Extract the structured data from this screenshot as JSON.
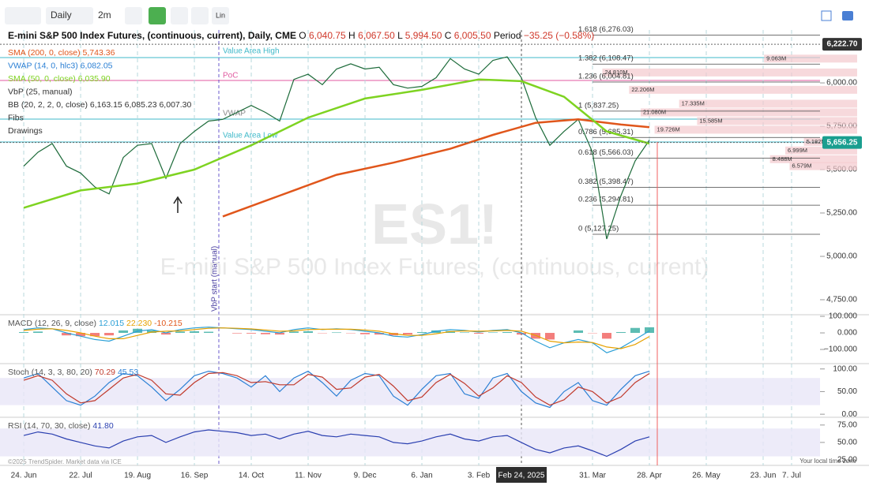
{
  "toolbar": {
    "interval": "Daily",
    "range": "2m",
    "scale": "Lin"
  },
  "header": {
    "title": "E-mini S&P 500 Index Futures, (continuous, current), Daily, CME",
    "ohlc": [
      {
        "key": "O",
        "value": "6,040.75"
      },
      {
        "key": "H",
        "value": "6,067.50"
      },
      {
        "key": "L",
        "value": "5,994.50"
      },
      {
        "key": "C",
        "value": "6,005.50"
      },
      {
        "key": "Period",
        "value": "−35.25 (−0.58%)"
      }
    ],
    "legend": [
      {
        "text": "SMA (200, 0, close)",
        "value": "5,743.36",
        "color": "#e0561b"
      },
      {
        "text": "VWAP (14, 0, hlc3)",
        "value": "6,082.05",
        "color": "#2a7fd4"
      },
      {
        "text": "SMA (50, 0, close)",
        "value": "6,035.90",
        "color": "#7ed321"
      },
      {
        "text": "VbP (25, manual)",
        "value": "",
        "color": "#333"
      },
      {
        "text": "BB (20, 2, 2, 0, close)",
        "value": "6,163.15 6,085.23 6,007.30",
        "color": "#333"
      },
      {
        "text": "Fibs",
        "value": "",
        "color": "#333"
      },
      {
        "text": "Drawings",
        "value": "",
        "color": "#333"
      }
    ]
  },
  "annotations": {
    "vah": "Value Area High",
    "poc": "PoC",
    "vwap": "VWAP",
    "val": "Value Area Low",
    "vbp": "VbP start (manual)",
    "watermark": "ES1!",
    "watermark_sub": "E-mini S&P 500 Index Futures, (continuous, current)",
    "crosshair": "Feb 24, 2025",
    "copyright": "©2025 TrendSpider. Market data via ICE",
    "timezone": "Your local time zone"
  },
  "chart_data": [
    {
      "type": "line",
      "xlim": [
        -1.67,
        56
      ],
      "ylim": [
        4668,
        6305
      ],
      "xticks": [
        {
          "value": 0,
          "label": "24. Jun"
        },
        {
          "value": 4,
          "label": "22. Jul"
        },
        {
          "value": 8,
          "label": "19. Aug"
        },
        {
          "value": 12,
          "label": "16. Sep"
        },
        {
          "value": 16,
          "label": "14. Oct"
        },
        {
          "value": 20,
          "label": "11. Nov"
        },
        {
          "value": 24,
          "label": "9. Dec"
        },
        {
          "value": 28,
          "label": "6. Jan"
        },
        {
          "value": 32,
          "label": "3. Feb"
        },
        {
          "value": 40,
          "label": "31. Mar"
        },
        {
          "value": 44,
          "label": "28. Apr"
        },
        {
          "value": 48,
          "label": "26. May"
        },
        {
          "value": 52,
          "label": "23. Jun"
        },
        {
          "value": 54,
          "label": "7. Jul"
        }
      ],
      "crosshair_x": 35,
      "yticks": [
        {
          "value": 6000,
          "label": "6,000.00"
        },
        {
          "value": 5750,
          "label": "5,750.00"
        },
        {
          "value": 5500,
          "label": "5,500.00"
        },
        {
          "value": 5250,
          "label": "5,250.00"
        },
        {
          "value": 5000,
          "label": "5,000.00"
        },
        {
          "value": 4750,
          "label": "4,750.00"
        }
      ],
      "price_tags": [
        {
          "value": 6222.7,
          "label": "6,222.70",
          "color": "#333"
        },
        {
          "value": 5656.25,
          "label": "5,656.25",
          "color": "#1a9e8f"
        }
      ],
      "series": [
        {
          "name": "Close",
          "color": "#1d6b3a",
          "x": [
            0,
            1,
            2,
            3,
            4,
            5,
            6,
            7,
            8,
            9,
            10,
            11,
            12,
            13,
            14,
            15,
            16,
            17,
            18,
            19,
            20,
            21,
            22,
            23,
            24,
            25,
            26,
            27,
            28,
            29,
            30,
            31,
            32,
            33,
            34,
            35,
            36,
            37,
            38,
            39,
            40,
            41,
            42,
            43,
            44
          ],
          "values": [
            5520,
            5600,
            5650,
            5520,
            5480,
            5400,
            5360,
            5570,
            5640,
            5650,
            5450,
            5650,
            5720,
            5780,
            5790,
            5830,
            5870,
            5830,
            5780,
            6020,
            6050,
            5990,
            6080,
            6110,
            6080,
            6090,
            5990,
            5970,
            5980,
            6030,
            6140,
            6080,
            6050,
            6130,
            6150,
            6030,
            5800,
            5640,
            5720,
            5790,
            5600,
            5100,
            5350,
            5550,
            5670
          ]
        },
        {
          "name": "SMA 200",
          "color": "#e0561b",
          "x": [
            14,
            18,
            22,
            26,
            30,
            33,
            36,
            39,
            42,
            44
          ],
          "values": [
            5230,
            5350,
            5470,
            5540,
            5620,
            5700,
            5770,
            5790,
            5760,
            5745
          ]
        },
        {
          "name": "SMA 50",
          "color": "#7ed321",
          "x": [
            0,
            4,
            8,
            12,
            16,
            20,
            24,
            28,
            32,
            35,
            38,
            41,
            44
          ],
          "values": [
            5280,
            5380,
            5420,
            5500,
            5640,
            5800,
            5910,
            5960,
            6020,
            6010,
            5920,
            5720,
            5650
          ]
        }
      ],
      "fibs": [
        {
          "value": 6276.03,
          "label": "1.618 (6,276.03)"
        },
        {
          "value": 6108.47,
          "label": "1.382 (6,108.47)"
        },
        {
          "value": 6004.81,
          "label": "1.236 (6,004.81)"
        },
        {
          "value": 5837.25,
          "label": "1 (5,837.25)"
        },
        {
          "value": 5685.31,
          "label": "0.786 (5,685.31)"
        },
        {
          "value": 5566.03,
          "label": "0.618 (5,566.03)"
        },
        {
          "value": 5398.47,
          "label": "0.382 (5,398.47)"
        },
        {
          "value": 5294.81,
          "label": "0.236 (5,294.81)"
        },
        {
          "value": 5127.25,
          "label": "0 (5,127.25)"
        }
      ],
      "volume_profile": {
        "prices": [
          6140,
          6060,
          5960,
          5880,
          5830,
          5780,
          5730,
          5660,
          5610,
          5560,
          5520
        ],
        "values": [
          9.063,
          24.81,
          22.206,
          17.335,
          21.08,
          15.585,
          19.726,
          5.182,
          6.999,
          8.488,
          6.579
        ],
        "value_labels": [
          "9.063M",
          "24.810M",
          "22.206M",
          "17.335M",
          "21.080M",
          "15.585M",
          "19.726M",
          "5.182M",
          "6.999M",
          "8.488M",
          "6.579M"
        ]
      }
    },
    {
      "type": "macd",
      "title": "MACD (12, 26, 9, close)",
      "readout": [
        {
          "value": "12.015",
          "color": "#2a9fd6"
        },
        {
          "value": "22.230",
          "color": "#e6a100"
        },
        {
          "value": "-10.215",
          "color": "#e0561b"
        }
      ],
      "ylim": [
        -181,
        105
      ],
      "yticks": [
        {
          "value": 100,
          "label": "100.000"
        },
        {
          "value": 0,
          "label": "0.000"
        },
        {
          "value": -100,
          "label": "−100.000"
        }
      ],
      "x": [
        0,
        1,
        2,
        3,
        4,
        5,
        6,
        7,
        8,
        9,
        10,
        11,
        12,
        13,
        14,
        15,
        16,
        17,
        18,
        19,
        20,
        21,
        22,
        23,
        24,
        25,
        26,
        27,
        28,
        29,
        30,
        31,
        32,
        33,
        34,
        35,
        36,
        37,
        38,
        39,
        40,
        41,
        42,
        43,
        44
      ],
      "series": [
        {
          "name": "MACD",
          "color": "#2a9fd6",
          "values": [
            20,
            30,
            25,
            0,
            -20,
            -40,
            -50,
            -20,
            10,
            20,
            0,
            20,
            30,
            35,
            30,
            25,
            20,
            10,
            0,
            20,
            30,
            20,
            25,
            20,
            10,
            0,
            -20,
            -25,
            -10,
            10,
            20,
            15,
            5,
            15,
            20,
            0,
            -50,
            -90,
            -60,
            -40,
            -60,
            -120,
            -90,
            -40,
            12
          ]
        },
        {
          "name": "Signal",
          "color": "#e6a100",
          "values": [
            15,
            22,
            25,
            15,
            0,
            -20,
            -35,
            -35,
            -15,
            5,
            10,
            12,
            20,
            28,
            30,
            28,
            24,
            18,
            10,
            12,
            20,
            22,
            22,
            22,
            18,
            10,
            -5,
            -15,
            -15,
            -5,
            8,
            12,
            10,
            12,
            15,
            10,
            -15,
            -50,
            -60,
            -55,
            -58,
            -85,
            -95,
            -70,
            -22
          ]
        }
      ],
      "histogram": [
        5,
        8,
        0,
        -15,
        -20,
        -20,
        -15,
        15,
        25,
        15,
        -10,
        8,
        10,
        7,
        0,
        -3,
        -4,
        -8,
        -10,
        8,
        10,
        -2,
        3,
        -2,
        -8,
        -10,
        -15,
        -10,
        5,
        15,
        12,
        3,
        -5,
        3,
        5,
        -10,
        -35,
        -40,
        0,
        15,
        -2,
        -35,
        5,
        30,
        34
      ]
    },
    {
      "type": "stoch",
      "title": "Stoch (14, 3, 3, 80, 20)",
      "readout": [
        {
          "value": "70.29",
          "color": "#c0392b"
        },
        {
          "value": "45.53",
          "color": "#2a7fd4"
        }
      ],
      "ylim": [
        -5,
        110
      ],
      "band": [
        20,
        80
      ],
      "yticks": [
        {
          "value": 100,
          "label": "100.00"
        },
        {
          "value": 50,
          "label": "50.00"
        },
        {
          "value": 0,
          "label": "0.00"
        }
      ],
      "x": [
        0,
        1,
        2,
        3,
        4,
        5,
        6,
        7,
        8,
        9,
        10,
        11,
        12,
        13,
        14,
        15,
        16,
        17,
        18,
        19,
        20,
        21,
        22,
        23,
        24,
        25,
        26,
        27,
        28,
        29,
        30,
        31,
        32,
        33,
        34,
        35,
        36,
        37,
        38,
        39,
        40,
        41,
        42,
        43,
        44
      ],
      "series": [
        {
          "name": "%K",
          "color": "#2a7fd4",
          "values": [
            80,
            90,
            60,
            30,
            20,
            40,
            70,
            90,
            85,
            60,
            30,
            55,
            85,
            95,
            90,
            80,
            60,
            85,
            50,
            80,
            95,
            70,
            40,
            75,
            90,
            85,
            40,
            20,
            55,
            85,
            90,
            45,
            35,
            80,
            90,
            50,
            25,
            15,
            50,
            70,
            30,
            20,
            55,
            85,
            95
          ]
        },
        {
          "name": "%D",
          "color": "#c0392b",
          "values": [
            75,
            85,
            75,
            45,
            25,
            30,
            55,
            80,
            88,
            75,
            45,
            42,
            70,
            90,
            92,
            85,
            70,
            72,
            65,
            65,
            88,
            82,
            55,
            58,
            82,
            88,
            62,
            30,
            38,
            70,
            88,
            68,
            40,
            58,
            85,
            70,
            38,
            20,
            32,
            60,
            50,
            25,
            38,
            70,
            90
          ]
        }
      ]
    },
    {
      "type": "rsi",
      "title": "RSI (14, 70, 30, close)",
      "readout": [
        {
          "value": "41.80",
          "color": "#2a3fb0"
        }
      ],
      "ylim": [
        17,
        85
      ],
      "band": [
        30,
        70
      ],
      "yticks": [
        {
          "value": 75,
          "label": "75.00"
        },
        {
          "value": 50,
          "label": "50.00"
        },
        {
          "value": 25,
          "label": "25.00"
        }
      ],
      "x": [
        0,
        1,
        2,
        3,
        4,
        5,
        6,
        7,
        8,
        9,
        10,
        11,
        12,
        13,
        14,
        15,
        16,
        17,
        18,
        19,
        20,
        21,
        22,
        23,
        24,
        25,
        26,
        27,
        28,
        29,
        30,
        31,
        32,
        33,
        34,
        35,
        36,
        37,
        38,
        39,
        40,
        41,
        42,
        43,
        44
      ],
      "series": [
        {
          "name": "RSI",
          "color": "#2a3fb0",
          "values": [
            60,
            65,
            62,
            55,
            50,
            45,
            42,
            52,
            58,
            60,
            50,
            58,
            65,
            68,
            66,
            64,
            60,
            62,
            55,
            62,
            66,
            60,
            58,
            62,
            60,
            58,
            50,
            48,
            52,
            58,
            62,
            55,
            52,
            58,
            60,
            50,
            40,
            35,
            42,
            45,
            38,
            30,
            40,
            52,
            58
          ]
        }
      ]
    }
  ]
}
